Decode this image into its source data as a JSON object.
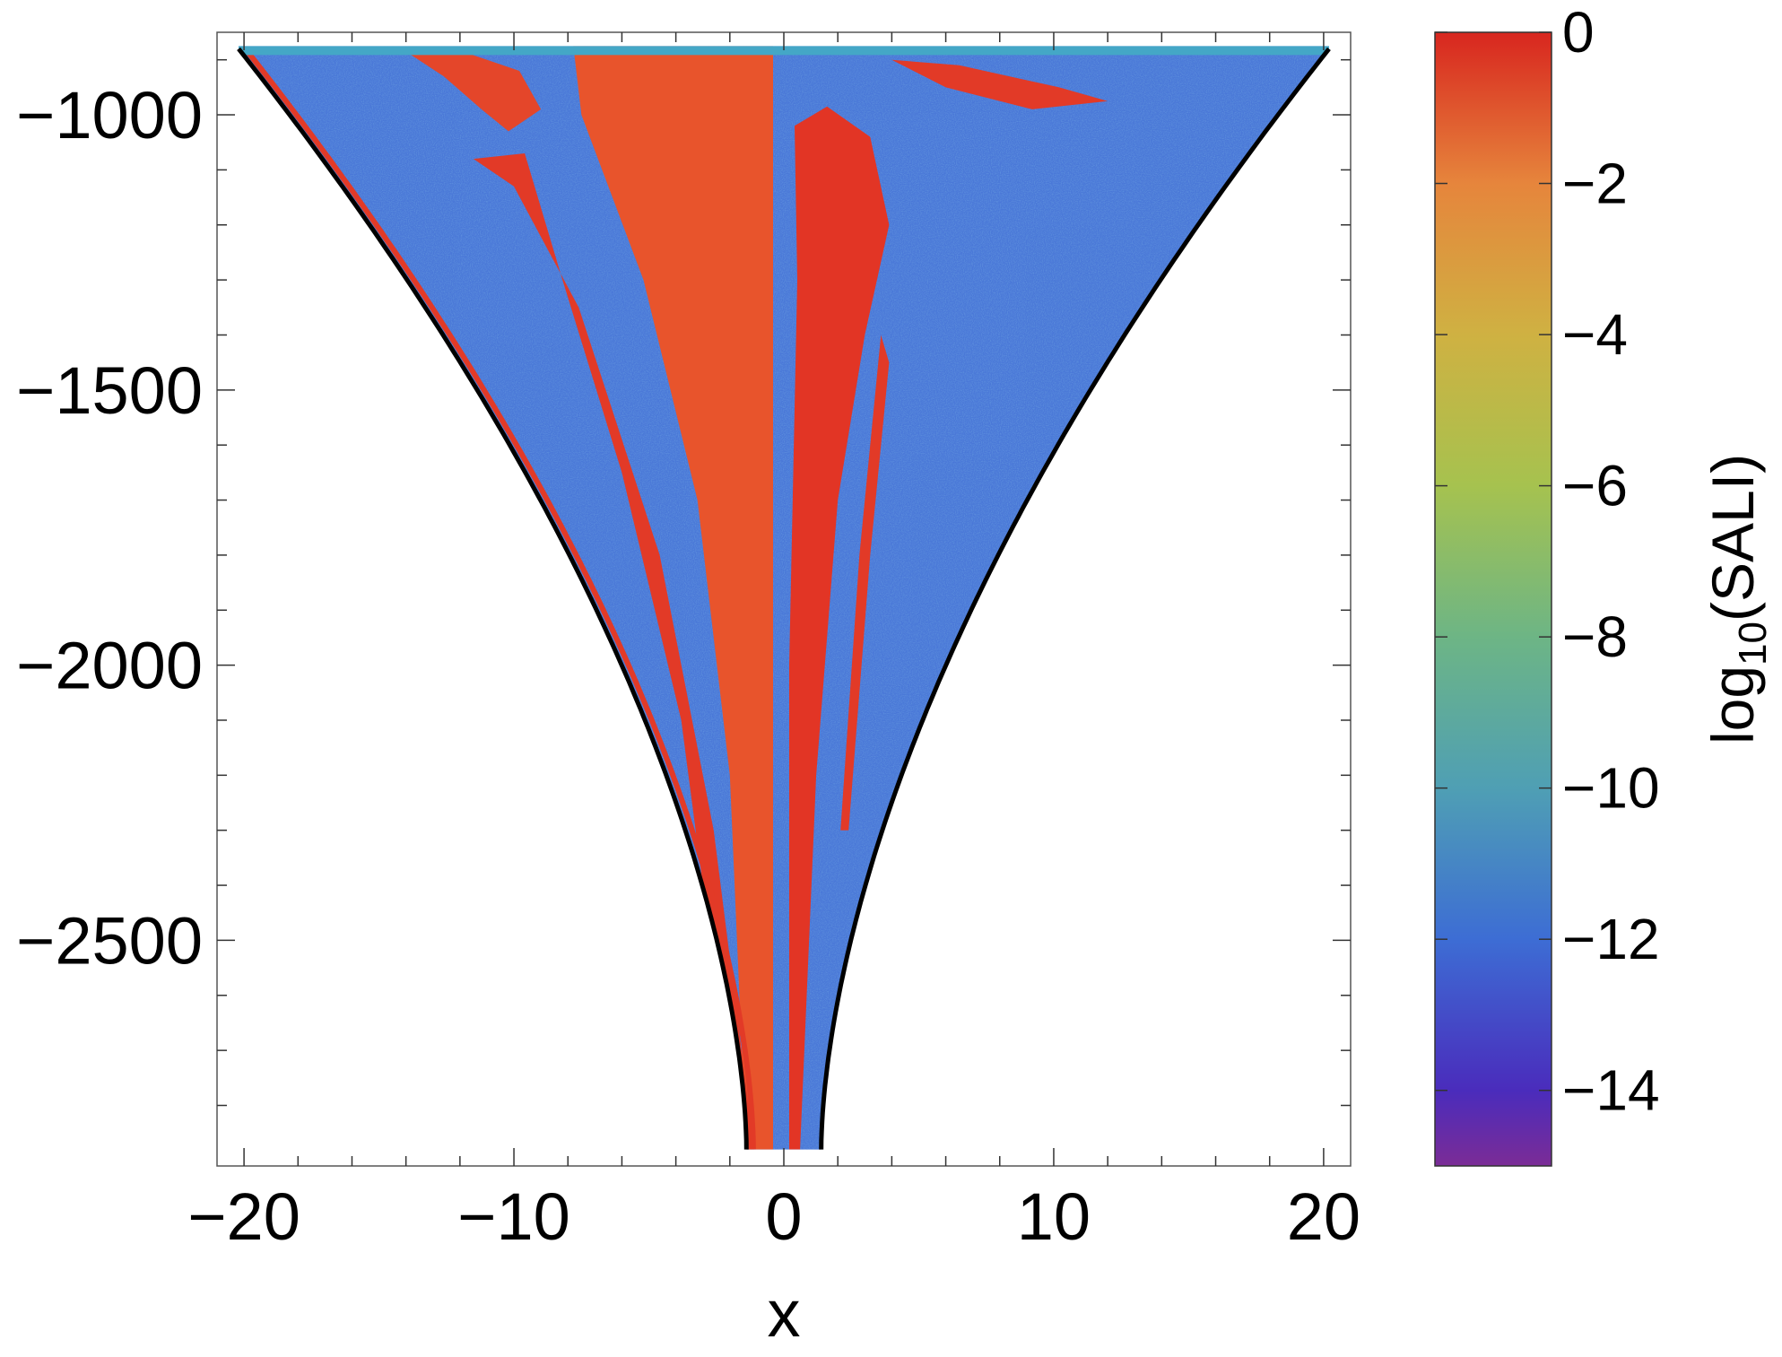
{
  "chart_data": {
    "type": "heatmap",
    "title": "",
    "xlabel": "x",
    "ylabel": "",
    "xlim": [
      -21,
      21
    ],
    "ylim": [
      -2910,
      -850
    ],
    "x_ticks": [
      -20,
      -10,
      0,
      10,
      20
    ],
    "x_tick_labels": [
      "−20",
      "−10",
      "0",
      "10",
      "20"
    ],
    "y_ticks": [
      -1000,
      -1500,
      -2000,
      -2500
    ],
    "y_tick_labels": [
      "−1000",
      "−1500",
      "−2000",
      "−2500"
    ],
    "grid": false,
    "boundary_curve": {
      "description_label": "",
      "color": "#000000",
      "x_max": 20.2,
      "y_top": -880,
      "y_bottom": -2880,
      "x_min_at_bottom": 1.0,
      "apex_x": 18
    },
    "colorbar": {
      "label": "log10(SALI)",
      "label_base": "log",
      "label_sub": "10",
      "label_rest": "(SALI)",
      "range": [
        -15,
        0
      ],
      "ticks": [
        0,
        -2,
        -4,
        -6,
        -8,
        -10,
        -12,
        -14
      ],
      "tick_labels": [
        "0",
        "−2",
        "−4",
        "−6",
        "−8",
        "−10",
        "−12",
        "−14"
      ],
      "colors": [
        {
          "value": 0,
          "color": "#d8261f"
        },
        {
          "value": -2,
          "color": "#e6853c"
        },
        {
          "value": -4,
          "color": "#cfb142"
        },
        {
          "value": -6,
          "color": "#a6c24f"
        },
        {
          "value": -8,
          "color": "#6db585"
        },
        {
          "value": -10,
          "color": "#4f9fb4"
        },
        {
          "value": -12,
          "color": "#3d6dd4"
        },
        {
          "value": -14,
          "color": "#4a2cbc"
        },
        {
          "value": -15,
          "color": "#7b2c96"
        }
      ]
    },
    "regions": {
      "regular_color": "#e8452a",
      "chaotic_color": "#4a78d8",
      "edge_color": "#44a7c6"
    }
  }
}
